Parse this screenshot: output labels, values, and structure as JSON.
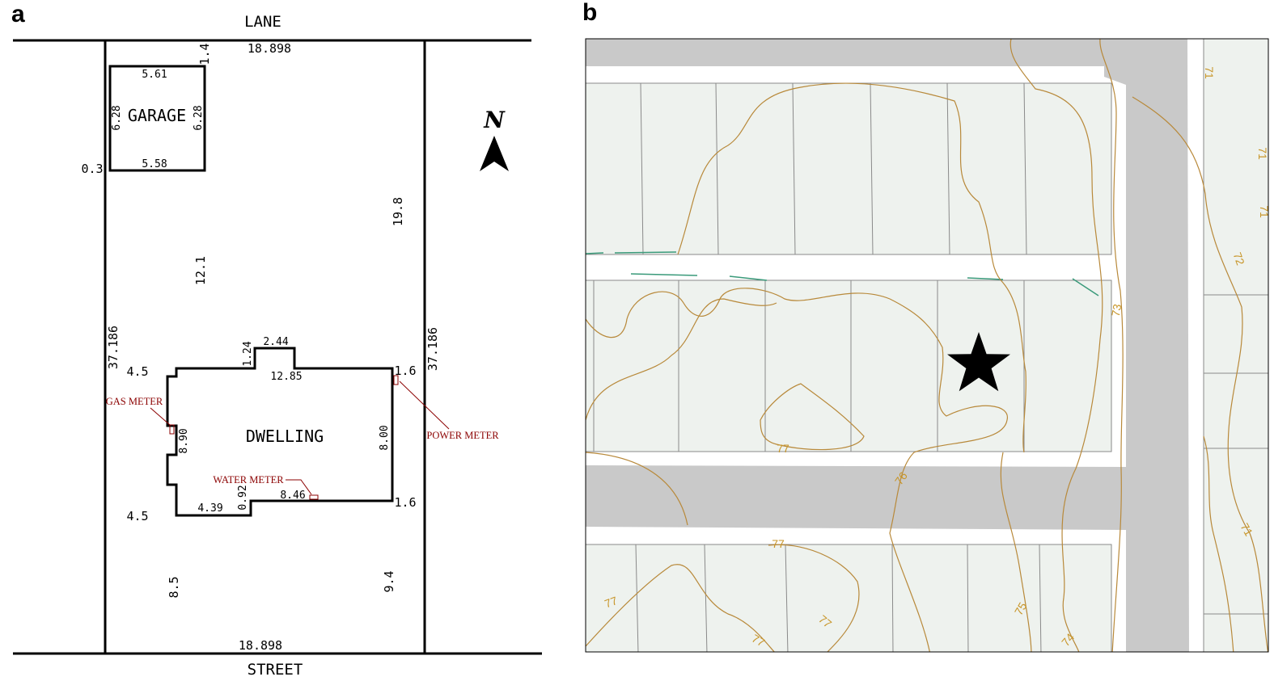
{
  "panels": {
    "a_label": "a",
    "b_label": "b"
  },
  "site_plan": {
    "lane_label": "LANE",
    "street_label": "STREET",
    "north_symbol": "N",
    "north_icon": "north-arrow-icon",
    "garage_label": "GARAGE",
    "dwelling_label": "DWELLING",
    "dimensions": {
      "top_width": "18.898",
      "bottom_width": "18.898",
      "lot_depth_left": "37.186",
      "lot_depth_right": "37.186",
      "garage_top": "5.61",
      "garage_bottom": "5.58",
      "garage_left": "6.28",
      "garage_right": "6.28",
      "garage_setback_top": "1.4",
      "garage_setback_left": "0.3",
      "garage_to_dwelling": "12.1",
      "right_yard": "19.8",
      "bump_width": "2.44",
      "bump_depth": "1.24",
      "dwelling_top": "12.85",
      "dwelling_left": "8.90",
      "dwelling_right": "8.00",
      "dwelling_bottom_right": "8.46",
      "dwelling_bottom_left": "4.39",
      "dwelling_bottom_step": "0.92",
      "side_left_top": "4.5",
      "side_left_bottom": "4.5",
      "side_right_top": "1.6",
      "side_right_bottom": "1.6",
      "front_left": "8.5",
      "front_right": "9.4"
    },
    "meters": {
      "gas": "GAS METER",
      "water": "WATER METER",
      "power": "POWER METER"
    },
    "meter_color": "#8b0000"
  },
  "map": {
    "contour_labels": [
      "77",
      "76",
      "77",
      "77",
      "77",
      "77",
      "75",
      "74",
      "73",
      "71",
      "71",
      "71",
      "72",
      "71"
    ],
    "contour_color": "#b8893a",
    "lot_color": "#eef2ee",
    "road_color": "#c9c9c9",
    "star_icon": "star-icon"
  }
}
